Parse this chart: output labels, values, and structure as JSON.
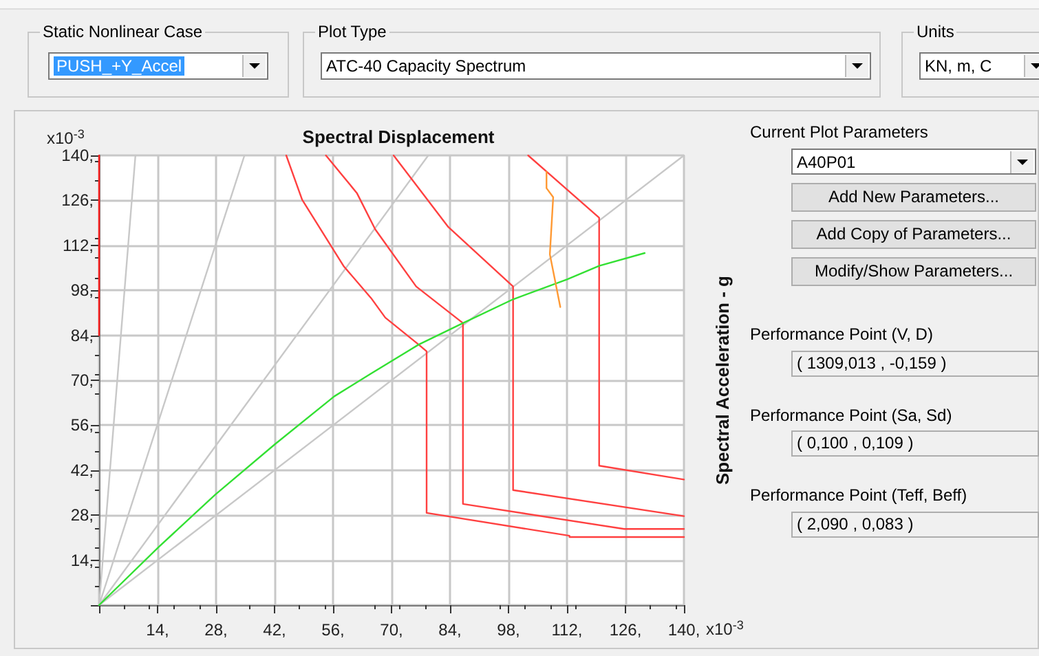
{
  "chart_data": [
    {
      "type": "line",
      "xlabel": "Spectral Displacement",
      "ylabel": "Spectral Acceleration - g",
      "annotations": [
        "x10$^{-3}$",
        "x10$^{-3}$"
      ],
      "xlim": [
        0,
        140
      ],
      "ylim": [
        0,
        140
      ],
      "xticks": [
        {
          "value": 0,
          "label": null
        },
        {
          "value": 14,
          "label": "14,"
        },
        {
          "value": 28,
          "label": "28,"
        },
        {
          "value": 42,
          "label": "42,"
        },
        {
          "value": 56,
          "label": "56,"
        },
        {
          "value": 70,
          "label": "70,"
        },
        {
          "value": 84,
          "label": "84,"
        },
        {
          "value": 98,
          "label": "98,"
        },
        {
          "value": 112,
          "label": "112,"
        },
        {
          "value": 126,
          "label": "126,"
        },
        {
          "value": 140,
          "label": "140,"
        }
      ],
      "yticks": [
        {
          "value": 0,
          "label": null
        },
        {
          "value": 14,
          "label": "14,"
        },
        {
          "value": 28,
          "label": "28,"
        },
        {
          "value": 42,
          "label": "42,"
        },
        {
          "value": 56,
          "label": "56,"
        },
        {
          "value": 70,
          "label": "70,"
        },
        {
          "value": 84,
          "label": "84,"
        },
        {
          "value": 98,
          "label": "98,"
        },
        {
          "value": 112,
          "label": "112,"
        },
        {
          "value": 126,
          "label": "126,"
        },
        {
          "value": 140,
          "label": "140,"
        }
      ],
      "grid": true,
      "marker": "none",
      "line_style": "solid",
      "series": [
        {
          "color": "#c8c8c8",
          "x": [
            0,
            8.7
          ],
          "values": [
            0,
            140
          ]
        },
        {
          "color": "#c8c8c8",
          "x": [
            0,
            34.8
          ],
          "values": [
            0,
            140
          ]
        },
        {
          "color": "#c8c8c8",
          "x": [
            0,
            78.8
          ],
          "values": [
            0,
            140
          ]
        },
        {
          "color": "#c8c8c8",
          "x": [
            0,
            140
          ],
          "values": [
            0,
            140
          ]
        },
        {
          "color": "#ff2020",
          "x": [
            0,
            0
          ],
          "values": [
            84,
            140
          ]
        },
        {
          "color": "#ff4040",
          "x": [
            44.8,
            48.6,
            58.5,
            65.1,
            68.5,
            76.5,
            78.4,
            78.4,
            112.6,
            112.6,
            140
          ],
          "values": [
            140,
            126.2,
            105.6,
            95.6,
            89.5,
            81.1,
            79,
            28.7,
            21.6,
            21.2,
            21.2
          ]
        },
        {
          "color": "#ff4040",
          "x": [
            54.3,
            61.7,
            66.1,
            75.9,
            87.1,
            87.1,
            125.7,
            140
          ],
          "values": [
            140,
            128.3,
            117,
            99.2,
            87.8,
            31.5,
            23.7,
            23.7
          ]
        },
        {
          "color": "#ff4040",
          "x": [
            70.5,
            83.6,
            99.1,
            99.1,
            140
          ],
          "values": [
            140,
            117.7,
            99.2,
            35.8,
            27.7
          ]
        },
        {
          "color": "#ff4040",
          "x": [
            102.7,
            119.7,
            119.7,
            140
          ],
          "values": [
            140,
            120.6,
            43.4,
            39.1
          ]
        },
        {
          "color": "#33e033",
          "x": [
            0,
            14.2,
            27.8,
            42.1,
            56.3,
            65.1,
            76.5,
            87.1,
            99.1,
            112,
            119.7,
            130.6
          ],
          "values": [
            0,
            18,
            34.4,
            50.1,
            65,
            72.1,
            81.1,
            87.8,
            95.2,
            101.4,
            105.6,
            109.6
          ]
        },
        {
          "color": "#ff9933",
          "x": [
            107.1,
            107.1,
            108.7,
            107.9,
            109,
            110.4
          ],
          "values": [
            134.9,
            129.8,
            127,
            109.2,
            102,
            92.8
          ]
        }
      ]
    },
    {
      "type": "other",
      "annotations": [
        "Static Nonlinear Case",
        "PUSH_+Y_Accel",
        "Plot Type",
        "ATC-40 Capacity Spectrum",
        "Units",
        "KN, m, C",
        "Current Plot Parameters",
        "A40P01",
        "Add New Parameters...",
        "Add Copy of Parameters...",
        "Modify/Show Parameters...",
        "Performance Point (V, D)",
        "( 1309,013 , -0,159 )",
        "Performance Point (Sa, Sd)",
        "( 0,100 , 0,109 )",
        "Performance Point (Teff, Beff)",
        "( 2,090 , 0,083 )"
      ]
    }
  ]
}
